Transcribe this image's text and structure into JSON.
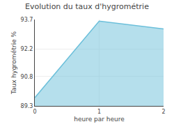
{
  "chart_data": {
    "type": "area",
    "title": "Evolution du taux d'hygrométrie",
    "x_label": "heure par heure",
    "y_label": "Taux hygrométrie %",
    "x": [
      0,
      1,
      2
    ],
    "values": [
      89.72,
      93.62,
      93.22
    ],
    "color": "#6bbfda",
    "xlim": [
      0,
      2
    ],
    "xticks": [
      0,
      1,
      2
    ],
    "ylim": [
      89.3,
      93.7
    ],
    "yticks": [
      89.3,
      90.8,
      92.2,
      93.7
    ],
    "grid": true
  }
}
